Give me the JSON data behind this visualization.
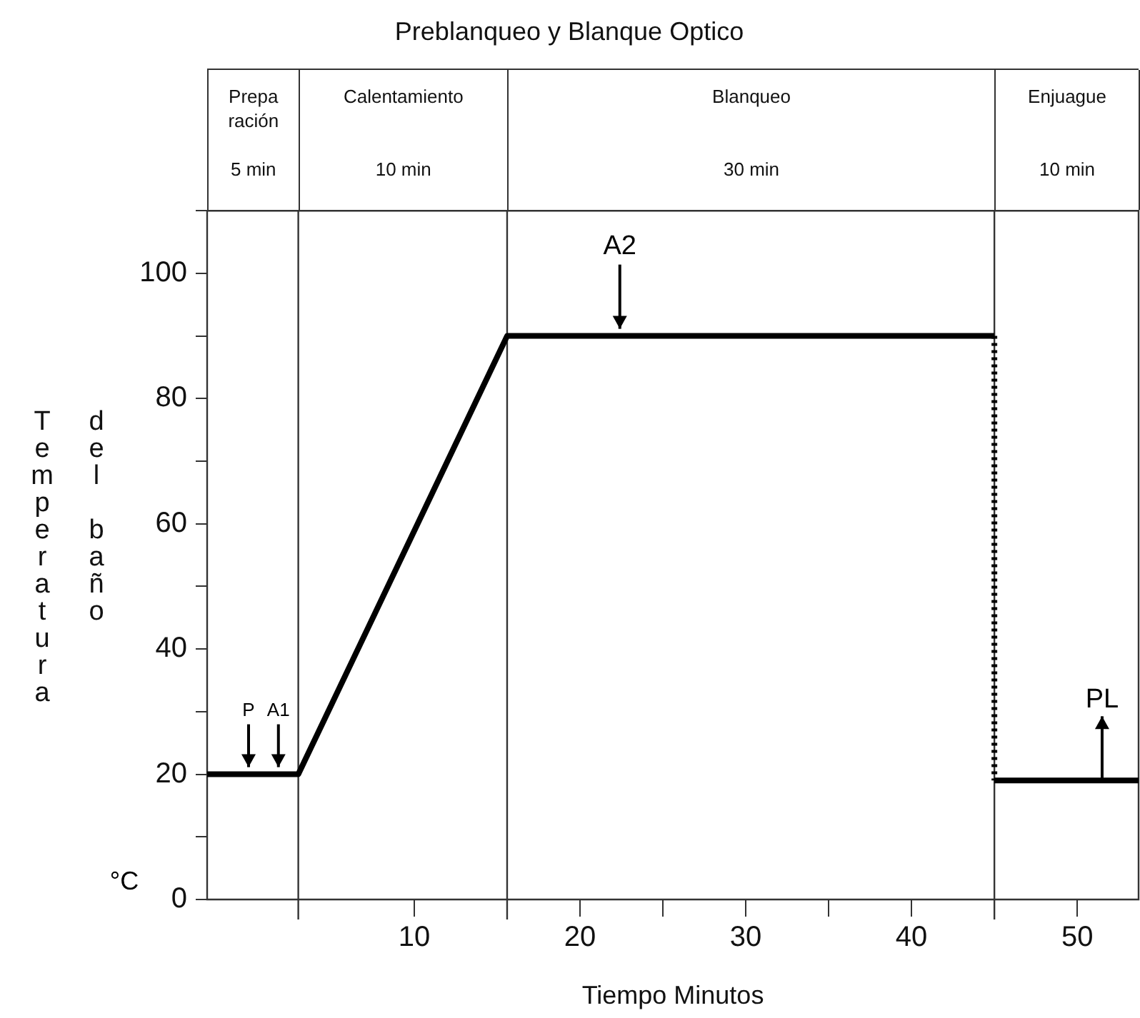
{
  "chart_data": {
    "type": "line",
    "title": "Preblanqueo y Blanque Optico",
    "xlabel": "Tiempo Minutos",
    "ylabel": "Temperatura del baño",
    "xlim": [
      -2.5,
      53.7
    ],
    "xticks": [
      10,
      20,
      {
        "value": 25,
        "label": null
      },
      30,
      {
        "value": 35,
        "label": null
      },
      40,
      50
    ],
    "ylim": [
      0,
      110
    ],
    "yticks": [
      0,
      {
        "value": 10,
        "label": null
      },
      20,
      {
        "value": 30,
        "label": null
      },
      40,
      {
        "value": 50,
        "label": null
      },
      60,
      {
        "value": 70,
        "label": null
      },
      80,
      {
        "value": 90,
        "label": null
      },
      100,
      {
        "value": 110,
        "label": null
      }
    ],
    "grid": false,
    "legend": false,
    "marker": "none",
    "series": [
      {
        "color": "#000000",
        "x": [
          -2.5,
          3,
          15.6,
          45
        ],
        "values": [
          20,
          20,
          90,
          90
        ]
      },
      {
        "color": "#000000",
        "x": [
          45,
          45
        ],
        "values": [
          90,
          19
        ],
        "line_style": "dotted"
      },
      {
        "color": "#000000",
        "x": [
          45,
          53.7
        ],
        "values": [
          19,
          19
        ]
      }
    ],
    "ref_lines": [
      {
        "axis": "x",
        "value": 3,
        "color": "#333333"
      },
      {
        "axis": "x",
        "value": 15.6,
        "color": "#333333"
      },
      {
        "axis": "x",
        "value": 45,
        "color": "#333333"
      }
    ],
    "annotations": [
      "Prepa\nración\n5 min",
      "Calentamiento\n10 min",
      "Blanqueo\n30 min",
      "Enjuague\n10 min",
      {
        "text": "P",
        "x": 0,
        "y": 20
      },
      {
        "text": "A1",
        "x": 1.8,
        "y": 20
      },
      {
        "text": "A2",
        "x": 22.4,
        "y": 90
      },
      {
        "text": "PL",
        "x": 51.5,
        "y": 19
      },
      "°C"
    ]
  }
}
